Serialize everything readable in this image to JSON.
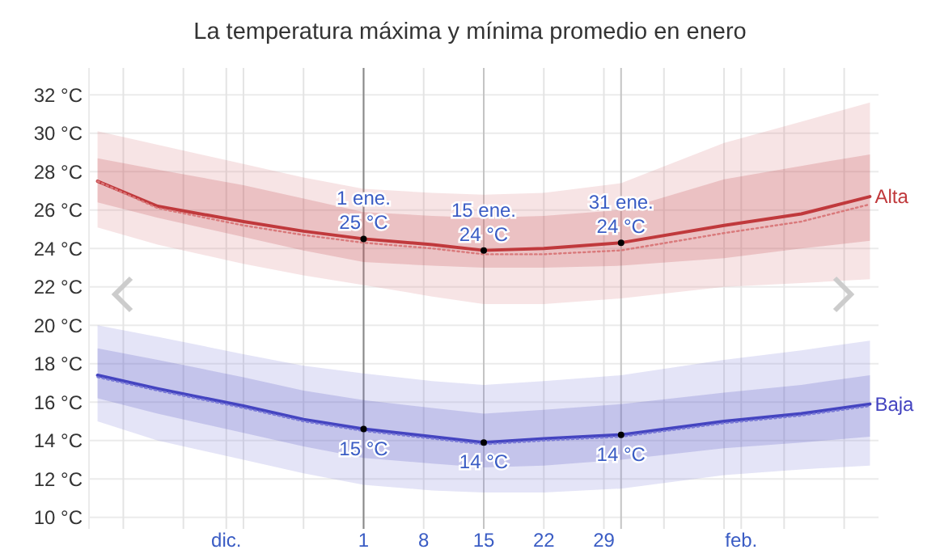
{
  "chart_data": {
    "type": "line",
    "title": "La temperatura máxima y mínima promedio en enero",
    "x": [
      -30,
      -23,
      -13,
      -6,
      1,
      9,
      15,
      22,
      31,
      43,
      52,
      60
    ],
    "xlim": [
      -31,
      61
    ],
    "xticks": [
      {
        "value": -27,
        "label": null
      },
      {
        "value": -20,
        "label": null
      },
      {
        "value": -15,
        "label": "dic."
      },
      {
        "value": -13,
        "label": null
      },
      {
        "value": -6,
        "label": null
      },
      1,
      8,
      15,
      22,
      29,
      {
        "value": 36,
        "label": null
      },
      {
        "value": 43,
        "label": null
      },
      {
        "value": 45,
        "label": "feb."
      },
      {
        "value": 50,
        "label": null
      },
      {
        "value": 57,
        "label": null
      }
    ],
    "ylim": [
      9.4,
      33.4
    ],
    "yticks": [
      {
        "value": 10,
        "label": "10 °C"
      },
      {
        "value": 12,
        "label": "12 °C"
      },
      {
        "value": 14,
        "label": "14 °C"
      },
      {
        "value": 16,
        "label": "16 °C"
      },
      {
        "value": 18,
        "label": "18 °C"
      },
      {
        "value": 20,
        "label": "20 °C"
      },
      {
        "value": 22,
        "label": "22 °C"
      },
      {
        "value": 24,
        "label": "24 °C"
      },
      {
        "value": 26,
        "label": "26 °C"
      },
      {
        "value": 28,
        "label": "28 °C"
      },
      {
        "value": 30,
        "label": "30 °C"
      },
      {
        "value": 32,
        "label": "32 °C"
      }
    ],
    "grid": true,
    "legend": false,
    "series": [
      {
        "color": "#d9797b",
        "line_style": "dotted",
        "values": [
          27.5,
          26.1,
          25.2,
          24.7,
          24.3,
          24.0,
          23.7,
          23.7,
          23.9,
          24.8,
          25.4,
          26.3
        ],
        "lower": [
          25.1,
          24.2,
          23.2,
          22.6,
          22.1,
          21.5,
          21.1,
          21.1,
          21.4,
          22.0,
          22.2,
          22.4
        ],
        "upper": [
          30.1,
          29.4,
          28.4,
          27.7,
          27.1,
          26.9,
          26.8,
          26.9,
          27.4,
          29.5,
          30.6,
          31.6
        ]
      },
      {
        "name": "Alta",
        "color": "#c0393c",
        "line_style": "solid",
        "values": [
          27.5,
          26.2,
          25.4,
          24.9,
          24.5,
          24.2,
          23.9,
          24.0,
          24.3,
          25.2,
          25.8,
          26.7
        ],
        "lower": [
          26.4,
          25.6,
          24.6,
          23.9,
          23.3,
          23.1,
          23.0,
          23.0,
          23.1,
          23.5,
          24.0,
          24.4
        ],
        "upper": [
          28.7,
          28.1,
          27.3,
          26.6,
          25.9,
          25.7,
          25.6,
          25.7,
          26.0,
          27.6,
          28.3,
          28.9
        ]
      },
      {
        "color": "#7a7ad6",
        "line_style": "dotted",
        "values": [
          17.3,
          16.6,
          15.7,
          15.0,
          14.5,
          14.1,
          13.8,
          14.0,
          14.2,
          14.9,
          15.3,
          15.8
        ],
        "lower": [
          15.0,
          14.0,
          13.0,
          12.3,
          11.7,
          11.4,
          11.3,
          11.3,
          11.5,
          12.2,
          12.5,
          12.7
        ],
        "upper": [
          20.0,
          19.4,
          18.5,
          17.9,
          17.5,
          17.1,
          16.9,
          17.1,
          17.4,
          18.2,
          18.7,
          19.2
        ]
      },
      {
        "name": "Baja",
        "color": "#4444c0",
        "line_style": "solid",
        "values": [
          17.4,
          16.7,
          15.8,
          15.1,
          14.6,
          14.2,
          13.9,
          14.1,
          14.3,
          15.0,
          15.4,
          15.9
        ],
        "lower": [
          16.2,
          15.4,
          14.4,
          13.7,
          13.1,
          12.8,
          12.6,
          12.7,
          13.0,
          13.6,
          13.9,
          14.2
        ],
        "upper": [
          18.8,
          18.2,
          17.3,
          16.6,
          16.1,
          15.7,
          15.4,
          15.6,
          15.9,
          16.5,
          16.9,
          17.4
        ]
      }
    ],
    "ref_lines": [
      {
        "axis": "x",
        "value": 1,
        "color": "#888888"
      },
      {
        "axis": "x",
        "value": 15,
        "color": "#c4c4c4"
      },
      {
        "axis": "x",
        "value": 31,
        "color": "#c4c4c4"
      }
    ],
    "annotations": [
      {
        "text": "1 ene.\n25 °C",
        "x": 1,
        "y": 24.5
      },
      {
        "text": "15 ene.\n24 °C",
        "x": 15,
        "y": 23.9
      },
      {
        "text": "31 ene.\n24 °C",
        "x": 31,
        "y": 24.3
      },
      {
        "text": "15 °C",
        "x": 1,
        "y": 14.6
      },
      {
        "text": "14 °C",
        "x": 15,
        "y": 13.9
      },
      {
        "text": "14 °C",
        "x": 31,
        "y": 14.3
      }
    ]
  }
}
